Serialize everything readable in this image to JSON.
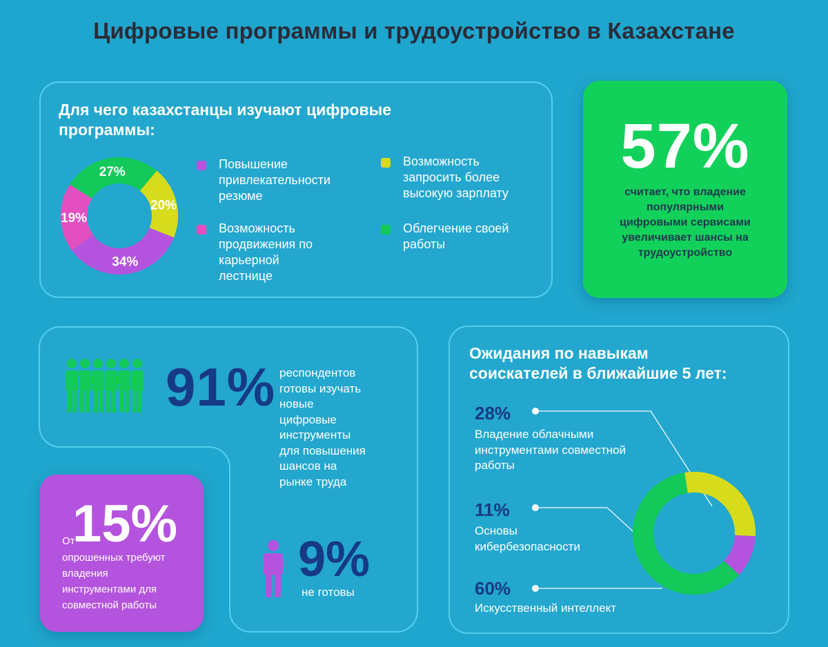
{
  "title": "Цифровые программы и трудоустройство в Казахстане",
  "purpose": {
    "heading_line1": "Для чего казахстанцы изучают цифровые",
    "heading_line2": "программы:",
    "legend": [
      {
        "lines": [
          "Повышение",
          "привлекательности",
          "резюме"
        ],
        "color": "#b453de"
      },
      {
        "lines": [
          "Возможность",
          "продвижения по",
          "карьерной",
          "лестнице"
        ],
        "color": "#e44fc0"
      },
      {
        "lines": [
          "Возможность",
          "запросить более",
          "высокую зарплату"
        ],
        "color": "#d6dc1c"
      },
      {
        "lines": [
          "Облегчение своей",
          "работы"
        ],
        "color": "#12c95a"
      }
    ]
  },
  "green_card": {
    "value": "57%",
    "text_lines": [
      "считает, что владение",
      "популярными",
      "цифровыми сервисами",
      "увеличивает шансы на",
      "трудоустройство"
    ]
  },
  "ready": {
    "value": "91%",
    "text_lines": [
      "респондентов",
      "готовы изучать",
      "новые",
      "цифровые",
      "инструменты",
      "для повышения",
      "шансов на",
      "рынке труда"
    ],
    "not_value": "9%",
    "not_label": "не готовы"
  },
  "purple_card": {
    "prefix": "От",
    "value": "15%",
    "text_lines": [
      "опрошенных требуют",
      "владения",
      "инструментами для",
      "совместной работы"
    ]
  },
  "skills": {
    "heading_line1": "Ожидания по навыкам",
    "heading_line2": "соискателей в ближайшие 5 лет:",
    "items": [
      {
        "pct": "28%",
        "lines": [
          "Владение облачными",
          "инструментами совместной",
          "работы"
        ]
      },
      {
        "pct": "11%",
        "lines": [
          "Основы",
          "кибербезопасности"
        ]
      },
      {
        "pct": "60%",
        "lines": [
          "Искусственный интеллект"
        ]
      }
    ]
  },
  "chart_data": [
    {
      "type": "pie",
      "categories": [
        "Повышение привлекательности резюме",
        "Возможность продвижения по карьерной лестнице",
        "Облегчение своей работы",
        "Возможность запросить более высокую зарплату"
      ],
      "values": [
        34,
        19,
        27,
        20
      ],
      "labels": [
        "34%",
        "19%",
        "27%",
        "20%"
      ],
      "colors": [
        "#b453de",
        "#e44fc0",
        "#12c95a",
        "#d6dc1c"
      ],
      "donut": true
    },
    {
      "type": "pie",
      "categories": [
        "Владение облачными инструментами совместной работы",
        "Основы кибербезопасности",
        "Искусственный интеллект"
      ],
      "values": [
        28,
        11,
        60
      ],
      "colors": [
        "#d6dc1c",
        "#b453de",
        "#12c95a"
      ],
      "donut": true
    }
  ]
}
